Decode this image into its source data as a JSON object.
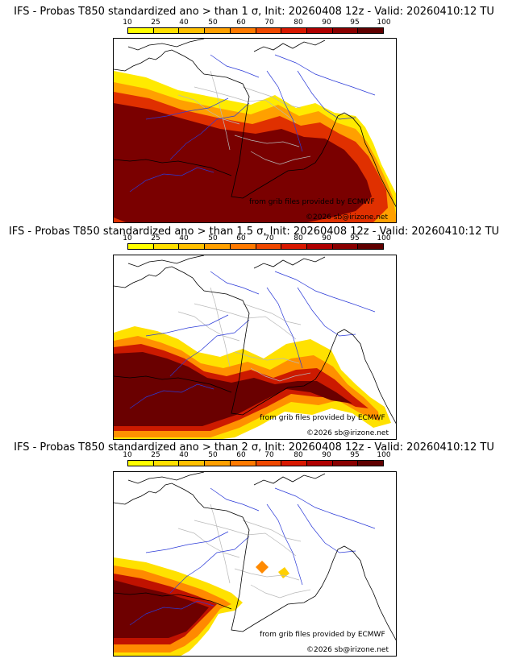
{
  "panels": [
    {
      "title": "IFS - Probas T850  standardized ano > than 1 σ, Init: 20260408 12z - Valid: 20260410:12 TU",
      "credit_source": "from grib files provided by ECMWF",
      "credit_copyright": "©2026 sb@irizone.net"
    },
    {
      "title": "IFS - Probas T850  standardized ano > than 1.5 σ, Init: 20260408 12z - Valid: 20260410:12 TU",
      "credit_source": "from grib files provided by ECMWF",
      "credit_copyright": "©2026 sb@irizone.net"
    },
    {
      "title": "IFS - Probas T850  standardized ano > than 2 σ, Init: 20260408 12z - Valid: 20260410:12 TU",
      "credit_source": "from grib files provided by ECMWF",
      "credit_copyright": "©2026 sb@irizone.net"
    }
  ],
  "colorbar": {
    "ticks": [
      "10",
      "25",
      "40",
      "50",
      "60",
      "70",
      "80",
      "90",
      "95",
      "100"
    ],
    "colors": [
      "#ffff00",
      "#ffe000",
      "#ffc000",
      "#ffa000",
      "#ff7a00",
      "#f04800",
      "#d81800",
      "#b00000",
      "#8a0000",
      "#600000"
    ]
  }
}
